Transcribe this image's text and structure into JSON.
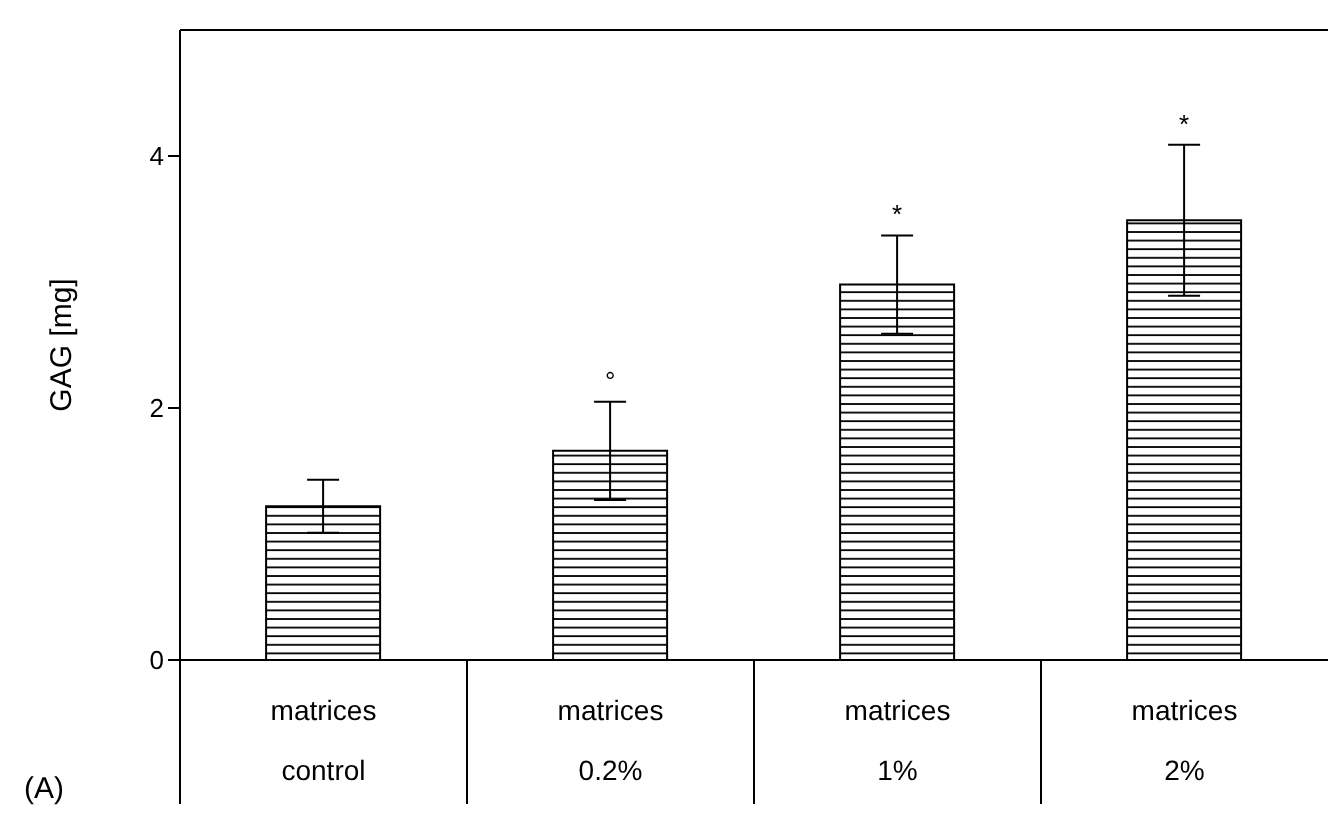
{
  "chart_data": {
    "type": "bar",
    "ylabel": "GAG [mg]",
    "categories": [
      "matrices\ncontrol",
      "matrices\n0.2%",
      "matrices\n1%",
      "matrices\n2%"
    ],
    "values": [
      1.22,
      1.66,
      2.98,
      3.49
    ],
    "errors": [
      0.21,
      0.39,
      0.39,
      0.6
    ],
    "color": "#000000",
    "ylim": [
      0,
      5
    ],
    "yticks": [
      0,
      2,
      4
    ],
    "grid": false,
    "legend": false,
    "value_labels": [
      null,
      "°",
      "*",
      "*"
    ],
    "annotations": [
      "(A)"
    ]
  }
}
